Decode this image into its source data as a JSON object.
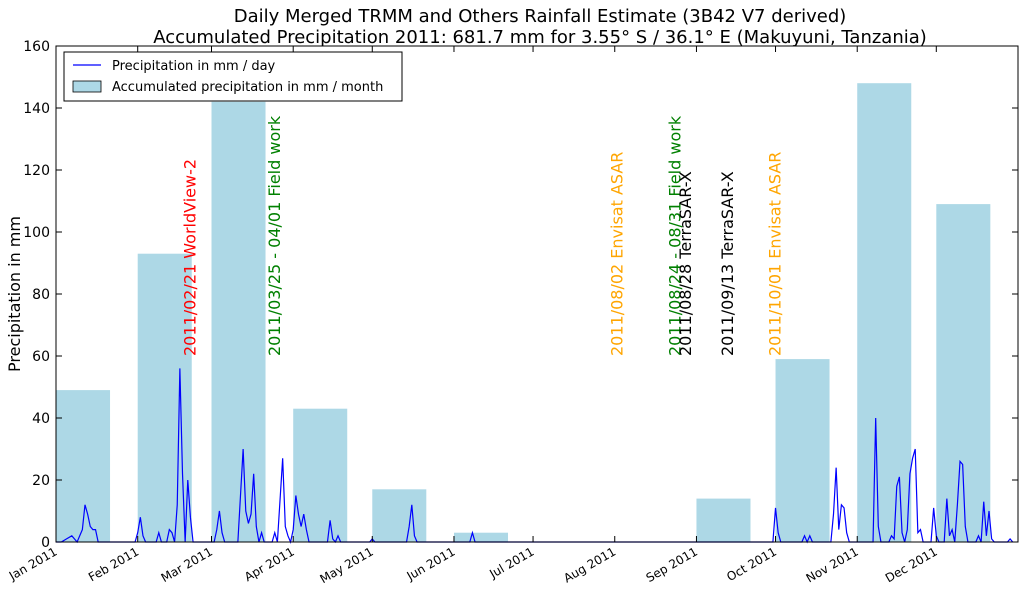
{
  "chart_data": {
    "type": "bar+line",
    "title_line1": "Daily Merged TRMM and Others Rainfall Estimate (3B42 V7 derived)",
    "title_line2": "Accumulated Precipitation 2011: 681.7 mm for 3.55° S / 36.1° E (Makuyuni, Tanzania)",
    "xlabel": "",
    "ylabel": "Precipitation in mm",
    "ylim": [
      0,
      160
    ],
    "yticks": [
      0,
      20,
      40,
      60,
      80,
      100,
      120,
      140,
      160
    ],
    "xlim_days": [
      0,
      365
    ],
    "grid": false,
    "legend_position": "upper-left",
    "legend": {
      "line_label": "Precipitation in mm / day",
      "bar_label": "Accumulated precipitation in mm / month"
    },
    "colors": {
      "bar": "#add8e6",
      "line": "#0000ff"
    },
    "months": [
      {
        "label": "Jan 2011",
        "start": "2011-01-01",
        "total": 49
      },
      {
        "label": "Feb 2011",
        "start": "2011-02-01",
        "total": 93
      },
      {
        "label": "Mar 2011",
        "start": "2011-03-01",
        "total": 142
      },
      {
        "label": "Apr 2011",
        "start": "2011-04-01",
        "total": 43
      },
      {
        "label": "May 2011",
        "start": "2011-05-01",
        "total": 17
      },
      {
        "label": "Jun 2011",
        "start": "2011-06-01",
        "total": 3
      },
      {
        "label": "Jul 2011",
        "start": "2011-07-01",
        "total": 0
      },
      {
        "label": "Aug 2011",
        "start": "2011-08-01",
        "total": 0
      },
      {
        "label": "Sep 2011",
        "start": "2011-09-01",
        "total": 14
      },
      {
        "label": "Oct 2011",
        "start": "2011-10-01",
        "total": 59
      },
      {
        "label": "Nov 2011",
        "start": "2011-11-01",
        "total": 148
      },
      {
        "label": "Dec 2011",
        "start": "2011-12-01",
        "total": 109
      }
    ],
    "daily": [
      [
        "2011-01-01",
        0
      ],
      [
        "2011-01-03",
        0
      ],
      [
        "2011-01-05",
        1
      ],
      [
        "2011-01-07",
        2
      ],
      [
        "2011-01-08",
        1
      ],
      [
        "2011-01-09",
        0
      ],
      [
        "2011-01-11",
        4
      ],
      [
        "2011-01-12",
        12
      ],
      [
        "2011-01-13",
        9
      ],
      [
        "2011-01-14",
        5
      ],
      [
        "2011-01-15",
        4
      ],
      [
        "2011-01-16",
        4
      ],
      [
        "2011-01-17",
        0
      ],
      [
        "2011-01-31",
        0
      ],
      [
        "2011-02-01",
        3
      ],
      [
        "2011-02-02",
        8
      ],
      [
        "2011-02-03",
        2
      ],
      [
        "2011-02-04",
        0
      ],
      [
        "2011-02-08",
        0
      ],
      [
        "2011-02-09",
        3
      ],
      [
        "2011-02-10",
        0
      ],
      [
        "2011-02-12",
        0
      ],
      [
        "2011-02-13",
        4
      ],
      [
        "2011-02-14",
        3
      ],
      [
        "2011-02-15",
        0
      ],
      [
        "2011-02-16",
        12
      ],
      [
        "2011-02-17",
        56
      ],
      [
        "2011-02-18",
        22
      ],
      [
        "2011-02-19",
        0
      ],
      [
        "2011-02-20",
        20
      ],
      [
        "2011-02-21",
        8
      ],
      [
        "2011-02-22",
        0
      ],
      [
        "2011-03-02",
        0
      ],
      [
        "2011-03-03",
        4
      ],
      [
        "2011-03-04",
        10
      ],
      [
        "2011-03-05",
        3
      ],
      [
        "2011-03-06",
        0
      ],
      [
        "2011-03-11",
        0
      ],
      [
        "2011-03-12",
        15
      ],
      [
        "2011-03-13",
        30
      ],
      [
        "2011-03-14",
        10
      ],
      [
        "2011-03-15",
        6
      ],
      [
        "2011-03-16",
        9
      ],
      [
        "2011-03-17",
        22
      ],
      [
        "2011-03-18",
        5
      ],
      [
        "2011-03-19",
        0
      ],
      [
        "2011-03-20",
        3
      ],
      [
        "2011-03-21",
        0
      ],
      [
        "2011-03-24",
        0
      ],
      [
        "2011-03-25",
        3
      ],
      [
        "2011-03-26",
        0
      ],
      [
        "2011-03-28",
        27
      ],
      [
        "2011-03-29",
        5
      ],
      [
        "2011-03-30",
        2
      ],
      [
        "2011-03-31",
        0
      ],
      [
        "2011-04-01",
        4
      ],
      [
        "2011-04-02",
        15
      ],
      [
        "2011-04-03",
        9
      ],
      [
        "2011-04-04",
        5
      ],
      [
        "2011-04-05",
        9
      ],
      [
        "2011-04-06",
        4
      ],
      [
        "2011-04-07",
        0
      ],
      [
        "2011-04-14",
        0
      ],
      [
        "2011-04-15",
        7
      ],
      [
        "2011-04-16",
        1
      ],
      [
        "2011-04-17",
        0
      ],
      [
        "2011-04-18",
        2
      ],
      [
        "2011-04-19",
        0
      ],
      [
        "2011-04-30",
        0
      ],
      [
        "2011-05-01",
        1
      ],
      [
        "2011-05-02",
        0
      ],
      [
        "2011-05-14",
        0
      ],
      [
        "2011-05-15",
        5
      ],
      [
        "2011-05-16",
        12
      ],
      [
        "2011-05-17",
        2
      ],
      [
        "2011-05-18",
        0
      ],
      [
        "2011-05-19",
        0
      ],
      [
        "2011-06-07",
        0
      ],
      [
        "2011-06-08",
        3
      ],
      [
        "2011-06-09",
        0
      ],
      [
        "2011-09-30",
        0
      ],
      [
        "2011-10-01",
        11
      ],
      [
        "2011-10-02",
        3
      ],
      [
        "2011-10-03",
        0
      ],
      [
        "2011-10-11",
        0
      ],
      [
        "2011-10-12",
        2
      ],
      [
        "2011-10-13",
        0
      ],
      [
        "2011-10-14",
        2
      ],
      [
        "2011-10-15",
        0
      ],
      [
        "2011-10-22",
        0
      ],
      [
        "2011-10-23",
        9
      ],
      [
        "2011-10-24",
        24
      ],
      [
        "2011-10-25",
        4
      ],
      [
        "2011-10-26",
        12
      ],
      [
        "2011-10-27",
        11
      ],
      [
        "2011-10-28",
        3
      ],
      [
        "2011-10-29",
        0
      ],
      [
        "2011-11-07",
        0
      ],
      [
        "2011-11-08",
        40
      ],
      [
        "2011-11-09",
        5
      ],
      [
        "2011-11-10",
        0
      ],
      [
        "2011-11-13",
        0
      ],
      [
        "2011-11-14",
        2
      ],
      [
        "2011-11-15",
        1
      ],
      [
        "2011-11-16",
        18
      ],
      [
        "2011-11-17",
        21
      ],
      [
        "2011-11-18",
        3
      ],
      [
        "2011-11-19",
        0
      ],
      [
        "2011-11-20",
        4
      ],
      [
        "2011-11-21",
        22
      ],
      [
        "2011-11-22",
        27
      ],
      [
        "2011-11-23",
        30
      ],
      [
        "2011-11-24",
        3
      ],
      [
        "2011-11-25",
        4
      ],
      [
        "2011-11-26",
        0
      ],
      [
        "2011-11-29",
        0
      ],
      [
        "2011-11-30",
        11
      ],
      [
        "2011-12-01",
        2
      ],
      [
        "2011-12-02",
        0
      ],
      [
        "2011-12-04",
        0
      ],
      [
        "2011-12-05",
        14
      ],
      [
        "2011-12-06",
        2
      ],
      [
        "2011-12-07",
        4
      ],
      [
        "2011-12-08",
        0
      ],
      [
        "2011-12-09",
        12
      ],
      [
        "2011-12-10",
        26
      ],
      [
        "2011-12-11",
        25
      ],
      [
        "2011-12-12",
        5
      ],
      [
        "2011-12-13",
        0
      ],
      [
        "2011-12-16",
        0
      ],
      [
        "2011-12-17",
        2
      ],
      [
        "2011-12-18",
        0
      ],
      [
        "2011-12-19",
        13
      ],
      [
        "2011-12-20",
        2
      ],
      [
        "2011-12-21",
        10
      ],
      [
        "2011-12-22",
        1
      ],
      [
        "2011-12-23",
        0
      ],
      [
        "2011-12-28",
        0
      ],
      [
        "2011-12-29",
        1
      ],
      [
        "2011-12-30",
        0
      ]
    ],
    "annotations": [
      {
        "text": "2011/02/21 WorldView-2",
        "date": "2011-02-21",
        "color": "#ff0000"
      },
      {
        "text": "2011/03/25 - 04/01 Field work",
        "date": "2011-03-25",
        "color": "#008000"
      },
      {
        "text": "2011/08/02 Envisat ASAR",
        "date": "2011-08-02",
        "color": "#ffa500"
      },
      {
        "text": "2011/08/24 - 08/31 Field work",
        "date": "2011-08-24",
        "color": "#008000"
      },
      {
        "text": "2011/08/28 TerraSAR-X",
        "date": "2011-08-28",
        "color": "#000000"
      },
      {
        "text": "2011/09/13 TerraSAR-X",
        "date": "2011-09-13",
        "color": "#000000"
      },
      {
        "text": "2011/10/01 Envisat ASAR",
        "date": "2011-10-01",
        "color": "#ffa500"
      }
    ]
  }
}
